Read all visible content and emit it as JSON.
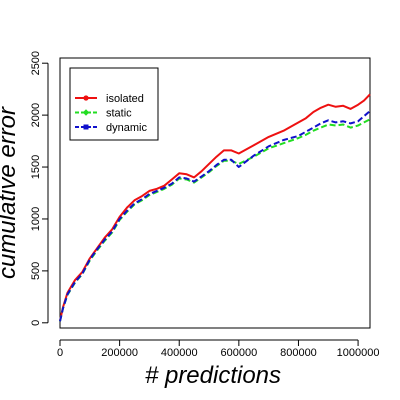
{
  "chart_data": {
    "type": "line",
    "title": "",
    "xlabel": "# predictions",
    "ylabel": "cumulative error",
    "xlim": [
      0,
      1040000
    ],
    "ylim": [
      -50,
      2550
    ],
    "x_ticks": [
      0,
      200000,
      400000,
      600000,
      800000,
      1000000
    ],
    "x_tick_labels": [
      "0",
      "200000",
      "400000",
      "600000",
      "800000",
      "1000000"
    ],
    "y_ticks": [
      0,
      500,
      1000,
      1500,
      2000,
      2500
    ],
    "y_tick_labels": [
      "0",
      "500",
      "1000",
      "1500",
      "2000",
      "2500"
    ],
    "grid": false,
    "legend": "top-left",
    "series": [
      {
        "name": "isolated",
        "color": "#ee1111",
        "marker": "circle",
        "dash": "solid",
        "x": [
          0,
          10000,
          25000,
          50000,
          75000,
          100000,
          125000,
          150000,
          175000,
          200000,
          225000,
          250000,
          275000,
          300000,
          325000,
          350000,
          375000,
          400000,
          425000,
          450000,
          475000,
          500000,
          525000,
          550000,
          575000,
          600000,
          650000,
          700000,
          750000,
          800000,
          825000,
          850000,
          875000,
          900000,
          925000,
          950000,
          975000,
          1000000,
          1020000,
          1040000
        ],
        "y": [
          20,
          150,
          290,
          410,
          490,
          620,
          720,
          820,
          900,
          1020,
          1110,
          1180,
          1220,
          1270,
          1290,
          1320,
          1380,
          1440,
          1430,
          1400,
          1460,
          1530,
          1600,
          1660,
          1660,
          1630,
          1710,
          1790,
          1850,
          1930,
          1970,
          2030,
          2070,
          2100,
          2080,
          2090,
          2060,
          2100,
          2140,
          2200
        ]
      },
      {
        "name": "static",
        "color": "#22dd22",
        "marker": "diamond",
        "dash": "dashed",
        "x": [
          0,
          10000,
          25000,
          50000,
          75000,
          100000,
          125000,
          150000,
          175000,
          200000,
          225000,
          250000,
          275000,
          300000,
          325000,
          350000,
          375000,
          400000,
          425000,
          450000,
          475000,
          500000,
          525000,
          550000,
          575000,
          600000,
          650000,
          700000,
          750000,
          800000,
          825000,
          850000,
          875000,
          900000,
          925000,
          950000,
          975000,
          1000000,
          1020000,
          1040000
        ],
        "y": [
          15,
          140,
          270,
          385,
          470,
          600,
          700,
          790,
          870,
          990,
          1070,
          1140,
          1180,
          1230,
          1260,
          1290,
          1330,
          1390,
          1380,
          1350,
          1400,
          1450,
          1510,
          1560,
          1560,
          1530,
          1600,
          1680,
          1730,
          1780,
          1810,
          1850,
          1880,
          1910,
          1900,
          1910,
          1880,
          1900,
          1930,
          1960
        ]
      },
      {
        "name": "dynamic",
        "color": "#1111cc",
        "marker": "square",
        "dash": "dashed",
        "x": [
          0,
          10000,
          25000,
          50000,
          75000,
          100000,
          125000,
          150000,
          175000,
          200000,
          225000,
          250000,
          275000,
          300000,
          325000,
          350000,
          375000,
          400000,
          425000,
          450000,
          475000,
          500000,
          525000,
          550000,
          575000,
          600000,
          650000,
          700000,
          750000,
          800000,
          825000,
          850000,
          875000,
          900000,
          925000,
          950000,
          975000,
          1000000,
          1020000,
          1040000
        ],
        "y": [
          15,
          140,
          275,
          390,
          475,
          610,
          710,
          800,
          880,
          1000,
          1080,
          1150,
          1190,
          1240,
          1270,
          1300,
          1340,
          1400,
          1390,
          1360,
          1410,
          1460,
          1520,
          1570,
          1570,
          1500,
          1610,
          1700,
          1760,
          1800,
          1840,
          1880,
          1920,
          1950,
          1930,
          1940,
          1920,
          1940,
          1990,
          2040
        ]
      }
    ]
  }
}
